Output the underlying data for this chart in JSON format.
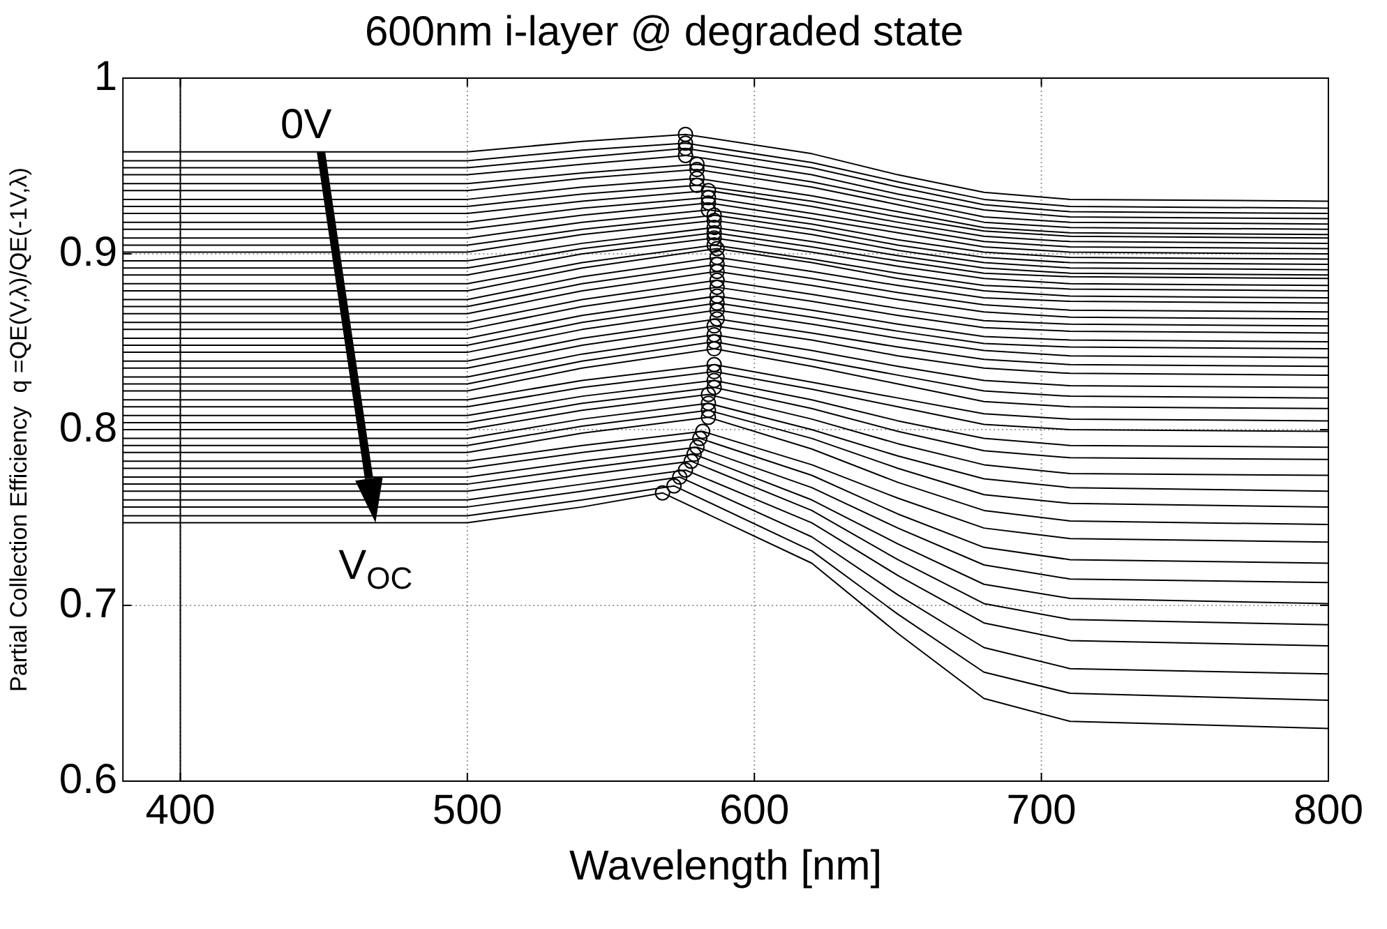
{
  "chart_data": {
    "type": "line",
    "title": "600nm i-layer @ degraded state",
    "xlabel": "Wavelength [nm]",
    "ylabel": "Partial Collection Efficiency  q =QE(V,λ)/QE(-1V,λ)",
    "xlim": [
      380,
      800
    ],
    "xticks": [
      400,
      500,
      600,
      700,
      800
    ],
    "ylim": [
      0.6,
      1
    ],
    "yticks": [
      0.6,
      0.7,
      0.8,
      0.9,
      1
    ],
    "grid": true,
    "legend": false,
    "marker": "none",
    "line_style": "solid",
    "annotations": [
      {
        "text": "0V",
        "x": 449,
        "y": 0.958
      },
      {
        "text": "V$_{OC}$",
        "x": 468,
        "y": 0.747
      }
    ],
    "ref_lines": [
      {
        "axis": "x",
        "value": 400,
        "color": "#000000"
      }
    ],
    "series": [
      {
        "type": "line",
        "color": "#000000",
        "x": [
          380,
          500,
          540,
          576,
          620,
          650,
          680,
          710,
          800
        ],
        "values": [
          0.958,
          0.958,
          0.964,
          0.968,
          0.957,
          0.945,
          0.935,
          0.931,
          0.93
        ]
      },
      {
        "type": "line",
        "color": "#000000",
        "x": [
          380,
          500,
          540,
          576,
          620,
          650,
          680,
          710,
          800
        ],
        "values": [
          0.953,
          0.953,
          0.959,
          0.963,
          0.952,
          0.941,
          0.931,
          0.927,
          0.926
        ]
      },
      {
        "type": "line",
        "color": "#000000",
        "x": [
          380,
          500,
          540,
          576,
          620,
          650,
          680,
          710,
          800
        ],
        "values": [
          0.949,
          0.949,
          0.955,
          0.96,
          0.949,
          0.938,
          0.928,
          0.924,
          0.923
        ]
      },
      {
        "type": "line",
        "color": "#000000",
        "x": [
          380,
          500,
          540,
          576,
          620,
          650,
          680,
          710,
          800
        ],
        "values": [
          0.945,
          0.945,
          0.951,
          0.956,
          0.945,
          0.934,
          0.925,
          0.921,
          0.92
        ]
      },
      {
        "type": "line",
        "color": "#000000",
        "x": [
          380,
          500,
          540,
          580,
          620,
          650,
          680,
          710,
          800
        ],
        "values": [
          0.94,
          0.94,
          0.946,
          0.951,
          0.941,
          0.931,
          0.921,
          0.918,
          0.917
        ]
      },
      {
        "type": "line",
        "color": "#000000",
        "x": [
          380,
          500,
          540,
          580,
          620,
          650,
          680,
          710,
          800
        ],
        "values": [
          0.936,
          0.936,
          0.943,
          0.948,
          0.938,
          0.928,
          0.918,
          0.915,
          0.914
        ]
      },
      {
        "type": "line",
        "color": "#000000",
        "x": [
          380,
          500,
          540,
          580,
          620,
          650,
          680,
          710,
          800
        ],
        "values": [
          0.931,
          0.931,
          0.938,
          0.943,
          0.933,
          0.924,
          0.915,
          0.912,
          0.911
        ]
      },
      {
        "type": "line",
        "color": "#000000",
        "x": [
          380,
          500,
          540,
          580,
          620,
          650,
          680,
          710,
          800
        ],
        "values": [
          0.927,
          0.927,
          0.934,
          0.939,
          0.93,
          0.921,
          0.913,
          0.91,
          0.909
        ]
      },
      {
        "type": "line",
        "color": "#000000",
        "x": [
          380,
          500,
          540,
          584,
          620,
          650,
          680,
          710,
          800
        ],
        "values": [
          0.923,
          0.923,
          0.93,
          0.936,
          0.927,
          0.918,
          0.91,
          0.907,
          0.906
        ]
      },
      {
        "type": "line",
        "color": "#000000",
        "x": [
          380,
          500,
          540,
          584,
          620,
          650,
          680,
          710,
          800
        ],
        "values": [
          0.918,
          0.918,
          0.926,
          0.932,
          0.923,
          0.915,
          0.907,
          0.904,
          0.903
        ]
      },
      {
        "type": "line",
        "color": "#000000",
        "x": [
          380,
          500,
          540,
          584,
          620,
          650,
          680,
          710,
          800
        ],
        "values": [
          0.914,
          0.914,
          0.922,
          0.929,
          0.92,
          0.912,
          0.904,
          0.901,
          0.9
        ]
      },
      {
        "type": "line",
        "color": "#000000",
        "x": [
          380,
          500,
          540,
          584,
          620,
          650,
          680,
          710,
          800
        ],
        "values": [
          0.909,
          0.909,
          0.918,
          0.925,
          0.917,
          0.908,
          0.901,
          0.898,
          0.897
        ]
      },
      {
        "type": "line",
        "color": "#000000",
        "x": [
          380,
          500,
          540,
          586,
          620,
          650,
          680,
          710,
          800
        ],
        "values": [
          0.905,
          0.905,
          0.914,
          0.922,
          0.914,
          0.905,
          0.898,
          0.895,
          0.894
        ]
      },
      {
        "type": "line",
        "color": "#000000",
        "x": [
          380,
          500,
          540,
          586,
          620,
          650,
          680,
          710,
          800
        ],
        "values": [
          0.901,
          0.901,
          0.911,
          0.919,
          0.911,
          0.902,
          0.895,
          0.892,
          0.891
        ]
      },
      {
        "type": "line",
        "color": "#000000",
        "x": [
          380,
          500,
          540,
          586,
          620,
          650,
          680,
          710,
          800
        ],
        "values": [
          0.896,
          0.896,
          0.906,
          0.915,
          0.907,
          0.899,
          0.892,
          0.889,
          0.888
        ]
      },
      {
        "type": "line",
        "color": "#000000",
        "x": [
          380,
          500,
          540,
          586,
          620,
          650,
          680,
          710,
          800
        ],
        "values": [
          0.892,
          0.892,
          0.903,
          0.912,
          0.904,
          0.896,
          0.889,
          0.887,
          0.886
        ]
      },
      {
        "type": "line",
        "color": "#000000",
        "x": [
          380,
          500,
          540,
          586,
          620,
          650,
          680,
          710,
          800
        ],
        "values": [
          0.888,
          0.888,
          0.9,
          0.909,
          0.901,
          0.893,
          0.886,
          0.883,
          0.882
        ]
      },
      {
        "type": "line",
        "color": "#000000",
        "x": [
          380,
          500,
          540,
          586,
          620,
          650,
          680,
          710,
          800
        ],
        "values": [
          0.883,
          0.883,
          0.895,
          0.905,
          0.897,
          0.889,
          0.882,
          0.88,
          0.879
        ]
      },
      {
        "type": "line",
        "color": "#000000",
        "x": [
          380,
          500,
          540,
          587,
          620,
          650,
          680,
          710,
          800
        ],
        "values": [
          0.879,
          0.879,
          0.892,
          0.903,
          0.895,
          0.886,
          0.879,
          0.876,
          0.875
        ]
      },
      {
        "type": "line",
        "color": "#000000",
        "x": [
          380,
          500,
          540,
          587,
          620,
          650,
          680,
          710,
          800
        ],
        "values": [
          0.874,
          0.874,
          0.887,
          0.898,
          0.89,
          0.882,
          0.875,
          0.873,
          0.872
        ]
      },
      {
        "type": "line",
        "color": "#000000",
        "x": [
          380,
          500,
          540,
          587,
          620,
          650,
          680,
          710,
          800
        ],
        "values": [
          0.87,
          0.87,
          0.883,
          0.894,
          0.886,
          0.878,
          0.871,
          0.868,
          0.867
        ]
      },
      {
        "type": "line",
        "color": "#000000",
        "x": [
          380,
          500,
          540,
          587,
          620,
          650,
          680,
          710,
          800
        ],
        "values": [
          0.866,
          0.866,
          0.879,
          0.89,
          0.882,
          0.874,
          0.867,
          0.864,
          0.863
        ]
      },
      {
        "type": "line",
        "color": "#000000",
        "x": [
          380,
          500,
          540,
          587,
          620,
          650,
          680,
          710,
          800
        ],
        "values": [
          0.861,
          0.861,
          0.874,
          0.885,
          0.877,
          0.869,
          0.862,
          0.86,
          0.859
        ]
      },
      {
        "type": "line",
        "color": "#000000",
        "x": [
          380,
          500,
          540,
          587,
          620,
          650,
          680,
          710,
          800
        ],
        "values": [
          0.857,
          0.857,
          0.87,
          0.881,
          0.873,
          0.865,
          0.858,
          0.856,
          0.855
        ]
      },
      {
        "type": "line",
        "color": "#000000",
        "x": [
          380,
          500,
          540,
          587,
          620,
          650,
          680,
          710,
          800
        ],
        "values": [
          0.852,
          0.852,
          0.865,
          0.876,
          0.868,
          0.86,
          0.853,
          0.851,
          0.85
        ]
      },
      {
        "type": "line",
        "color": "#000000",
        "x": [
          380,
          500,
          540,
          587,
          620,
          650,
          680,
          710,
          800
        ],
        "values": [
          0.848,
          0.848,
          0.861,
          0.872,
          0.864,
          0.856,
          0.849,
          0.847,
          0.846
        ]
      },
      {
        "type": "line",
        "color": "#000000",
        "x": [
          380,
          500,
          540,
          587,
          620,
          650,
          680,
          710,
          800
        ],
        "values": [
          0.844,
          0.844,
          0.857,
          0.868,
          0.86,
          0.852,
          0.845,
          0.842,
          0.841
        ]
      },
      {
        "type": "line",
        "color": "#000000",
        "x": [
          380,
          500,
          540,
          587,
          620,
          650,
          680,
          710,
          800
        ],
        "values": [
          0.839,
          0.839,
          0.852,
          0.863,
          0.855,
          0.847,
          0.84,
          0.837,
          0.836
        ]
      },
      {
        "type": "line",
        "color": "#000000",
        "x": [
          380,
          500,
          540,
          586,
          620,
          650,
          680,
          710,
          800
        ],
        "values": [
          0.835,
          0.835,
          0.848,
          0.859,
          0.851,
          0.842,
          0.835,
          0.832,
          0.831
        ]
      },
      {
        "type": "line",
        "color": "#000000",
        "x": [
          380,
          500,
          540,
          586,
          620,
          650,
          680,
          710,
          800
        ],
        "values": [
          0.83,
          0.83,
          0.843,
          0.854,
          0.845,
          0.836,
          0.828,
          0.825,
          0.824
        ]
      },
      {
        "type": "line",
        "color": "#000000",
        "x": [
          380,
          500,
          540,
          586,
          620,
          650,
          680,
          710,
          800
        ],
        "values": [
          0.826,
          0.826,
          0.839,
          0.85,
          0.84,
          0.831,
          0.822,
          0.819,
          0.818
        ]
      },
      {
        "type": "line",
        "color": "#000000",
        "x": [
          380,
          500,
          540,
          586,
          620,
          650,
          680,
          710,
          800
        ],
        "values": [
          0.822,
          0.822,
          0.835,
          0.846,
          0.836,
          0.826,
          0.816,
          0.813,
          0.812
        ]
      },
      {
        "type": "line",
        "color": "#000000",
        "x": [
          380,
          500,
          540,
          586,
          620,
          650,
          680,
          710,
          800
        ],
        "values": [
          0.817,
          0.817,
          0.828,
          0.837,
          0.827,
          0.818,
          0.809,
          0.806,
          0.805
        ]
      },
      {
        "type": "line",
        "color": "#000000",
        "x": [
          380,
          500,
          540,
          586,
          620,
          650,
          680,
          710,
          800
        ],
        "values": [
          0.813,
          0.813,
          0.824,
          0.833,
          0.823,
          0.813,
          0.803,
          0.8,
          0.799
        ]
      },
      {
        "type": "line",
        "color": "#000000",
        "x": [
          380,
          500,
          540,
          586,
          620,
          650,
          680,
          710,
          800
        ],
        "values": [
          0.808,
          0.808,
          0.819,
          0.828,
          0.817,
          0.805,
          0.795,
          0.791,
          0.79
        ]
      },
      {
        "type": "line",
        "color": "#000000",
        "x": [
          380,
          500,
          540,
          586,
          620,
          650,
          680,
          710,
          800
        ],
        "values": [
          0.804,
          0.804,
          0.815,
          0.824,
          0.812,
          0.799,
          0.788,
          0.784,
          0.783
        ]
      },
      {
        "type": "line",
        "color": "#000000",
        "x": [
          380,
          500,
          540,
          584,
          620,
          650,
          680,
          710,
          800
        ],
        "values": [
          0.8,
          0.8,
          0.811,
          0.82,
          0.806,
          0.792,
          0.78,
          0.775,
          0.774
        ]
      },
      {
        "type": "line",
        "color": "#000000",
        "x": [
          380,
          500,
          540,
          584,
          620,
          650,
          680,
          710,
          800
        ],
        "values": [
          0.795,
          0.795,
          0.806,
          0.815,
          0.8,
          0.785,
          0.772,
          0.767,
          0.765
        ]
      },
      {
        "type": "line",
        "color": "#000000",
        "x": [
          380,
          500,
          540,
          584,
          620,
          650,
          680,
          710,
          800
        ],
        "values": [
          0.791,
          0.791,
          0.802,
          0.811,
          0.795,
          0.778,
          0.763,
          0.758,
          0.756
        ]
      },
      {
        "type": "line",
        "color": "#000000",
        "x": [
          380,
          500,
          540,
          584,
          620,
          650,
          680,
          710,
          800
        ],
        "values": [
          0.787,
          0.787,
          0.798,
          0.807,
          0.789,
          0.77,
          0.754,
          0.748,
          0.746
        ]
      },
      {
        "type": "line",
        "color": "#000000",
        "x": [
          380,
          500,
          540,
          582,
          620,
          650,
          680,
          710,
          800
        ],
        "values": [
          0.782,
          0.782,
          0.791,
          0.799,
          0.78,
          0.761,
          0.744,
          0.738,
          0.736
        ]
      },
      {
        "type": "line",
        "color": "#000000",
        "x": [
          380,
          500,
          540,
          581,
          620,
          650,
          680,
          710,
          800
        ],
        "values": [
          0.778,
          0.778,
          0.787,
          0.795,
          0.774,
          0.752,
          0.733,
          0.726,
          0.724
        ]
      },
      {
        "type": "line",
        "color": "#000000",
        "x": [
          380,
          500,
          540,
          580,
          620,
          650,
          680,
          710,
          800
        ],
        "values": [
          0.773,
          0.773,
          0.782,
          0.79,
          0.767,
          0.744,
          0.723,
          0.715,
          0.713
        ]
      },
      {
        "type": "line",
        "color": "#000000",
        "x": [
          380,
          500,
          540,
          579,
          620,
          650,
          680,
          710,
          800
        ],
        "values": [
          0.769,
          0.769,
          0.778,
          0.786,
          0.76,
          0.735,
          0.712,
          0.704,
          0.701
        ]
      },
      {
        "type": "line",
        "color": "#000000",
        "x": [
          380,
          500,
          540,
          578,
          620,
          650,
          680,
          710,
          800
        ],
        "values": [
          0.765,
          0.765,
          0.774,
          0.782,
          0.754,
          0.726,
          0.701,
          0.692,
          0.689
        ]
      },
      {
        "type": "line",
        "color": "#000000",
        "x": [
          380,
          500,
          540,
          576,
          620,
          650,
          680,
          710,
          800
        ],
        "values": [
          0.76,
          0.76,
          0.769,
          0.777,
          0.747,
          0.717,
          0.69,
          0.68,
          0.677
        ]
      },
      {
        "type": "line",
        "color": "#000000",
        "x": [
          380,
          500,
          540,
          574,
          620,
          650,
          680,
          710,
          800
        ],
        "values": [
          0.756,
          0.756,
          0.765,
          0.773,
          0.739,
          0.706,
          0.676,
          0.664,
          0.661
        ]
      },
      {
        "type": "line",
        "color": "#000000",
        "x": [
          380,
          500,
          540,
          572,
          620,
          650,
          680,
          710,
          800
        ],
        "values": [
          0.751,
          0.751,
          0.76,
          0.768,
          0.731,
          0.695,
          0.662,
          0.65,
          0.646
        ]
      },
      {
        "type": "line",
        "color": "#000000",
        "x": [
          380,
          500,
          540,
          568,
          620,
          650,
          680,
          710,
          800
        ],
        "values": [
          0.747,
          0.747,
          0.756,
          0.764,
          0.724,
          0.684,
          0.647,
          0.634,
          0.63
        ]
      },
      {
        "type": "scatter",
        "marker": "circle",
        "color": "#000000",
        "x": [
          576,
          576,
          576,
          576,
          580,
          580,
          580,
          580,
          584,
          584,
          584,
          584,
          586,
          586,
          586,
          586,
          586,
          586,
          587,
          587,
          587,
          587,
          587,
          587,
          587,
          587,
          587,
          587,
          586,
          586,
          586,
          586,
          586,
          586,
          586,
          586,
          584,
          584,
          584,
          584,
          582,
          581,
          580,
          579,
          578,
          576,
          574,
          572,
          568
        ],
        "values": [
          0.968,
          0.963,
          0.96,
          0.956,
          0.951,
          0.948,
          0.943,
          0.939,
          0.936,
          0.932,
          0.929,
          0.925,
          0.922,
          0.919,
          0.915,
          0.912,
          0.909,
          0.905,
          0.903,
          0.898,
          0.894,
          0.89,
          0.885,
          0.881,
          0.876,
          0.872,
          0.868,
          0.863,
          0.859,
          0.854,
          0.85,
          0.846,
          0.837,
          0.833,
          0.828,
          0.824,
          0.82,
          0.815,
          0.811,
          0.807,
          0.799,
          0.795,
          0.79,
          0.786,
          0.782,
          0.777,
          0.773,
          0.768,
          0.764
        ]
      }
    ]
  }
}
